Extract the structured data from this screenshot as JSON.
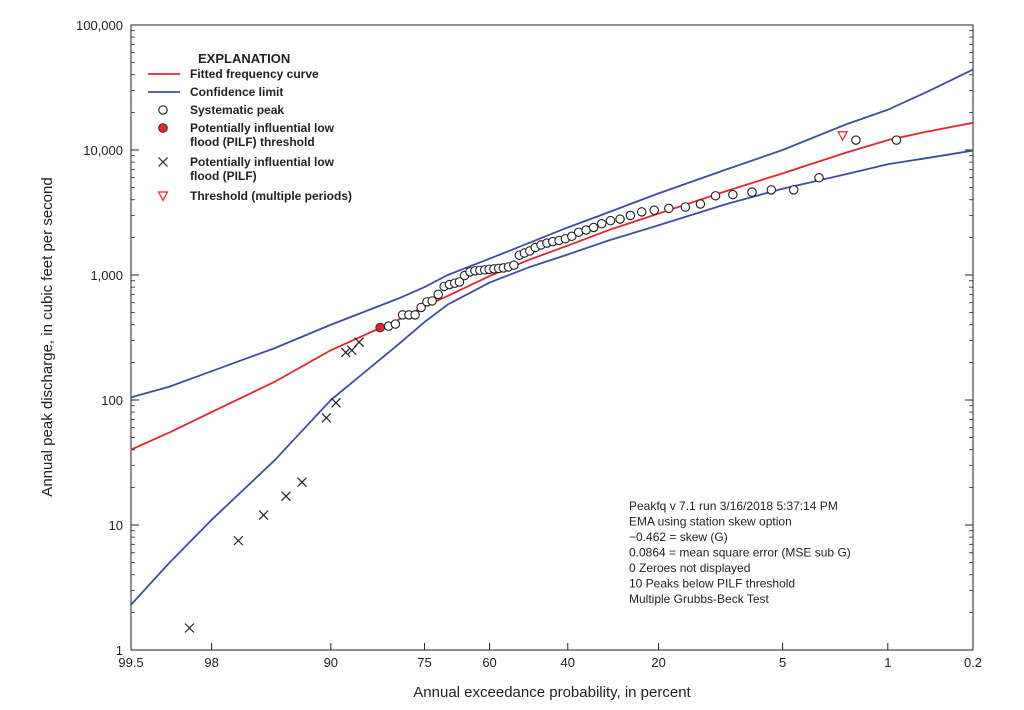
{
  "chart_data": {
    "type": "scatter",
    "title": "",
    "xlabel": "Annual exceedance probability, in percent",
    "ylabel": "Annual peak discharge, in cubic feet per second",
    "x_scale": "normal-probability",
    "y_scale": "log",
    "xlim": [
      99.5,
      0.2
    ],
    "ylim": [
      1,
      100000
    ],
    "x_ticks": [
      {
        "value": 99.5,
        "label": "99.5"
      },
      {
        "value": 98,
        "label": "98"
      },
      {
        "value": 90,
        "label": "90"
      },
      {
        "value": 75,
        "label": "75"
      },
      {
        "value": 60,
        "label": "60"
      },
      {
        "value": 40,
        "label": "40"
      },
      {
        "value": 20,
        "label": "20"
      },
      {
        "value": 5,
        "label": "5"
      },
      {
        "value": 1,
        "label": "1"
      },
      {
        "value": 0.2,
        "label": "0.2"
      }
    ],
    "y_ticks": [
      {
        "value": 1,
        "label": "1"
      },
      {
        "value": 10,
        "label": "10"
      },
      {
        "value": 100,
        "label": "100"
      },
      {
        "value": 1000,
        "label": "1,000"
      },
      {
        "value": 10000,
        "label": "10,000"
      },
      {
        "value": 100000,
        "label": "100,000"
      }
    ],
    "legend": {
      "title": "EXPLANATION",
      "placement": "top-left",
      "items": [
        {
          "kind": "line",
          "color": "#e2262b",
          "label_lines": [
            "Fitted frequency curve"
          ]
        },
        {
          "kind": "line",
          "color": "#3b4fa1",
          "label_lines": [
            "Confidence limit"
          ]
        },
        {
          "kind": "open-circle",
          "color": "#231f20",
          "label_lines": [
            "Systematic peak"
          ]
        },
        {
          "kind": "filled-circle",
          "color": "#e2262b",
          "label_lines": [
            "Potentially influential low",
            "flood (PILF) threshold"
          ]
        },
        {
          "kind": "cross",
          "color": "#231f20",
          "label_lines": [
            "Potentially influential low",
            "flood (PILF)"
          ]
        },
        {
          "kind": "triangle-down",
          "color": "#e2262b",
          "label_lines": [
            "Threshold (multiple periods)"
          ]
        }
      ]
    },
    "series": [
      {
        "name": "Fitted frequency curve",
        "kind": "line",
        "color": "#e2262b",
        "points": [
          [
            99.5,
            40
          ],
          [
            99,
            55
          ],
          [
            98,
            80
          ],
          [
            95,
            140
          ],
          [
            90,
            250
          ],
          [
            80,
            440
          ],
          [
            75,
            560
          ],
          [
            70,
            680
          ],
          [
            60,
            980
          ],
          [
            50,
            1320
          ],
          [
            40,
            1720
          ],
          [
            30,
            2300
          ],
          [
            20,
            3100
          ],
          [
            10,
            4700
          ],
          [
            5,
            6500
          ],
          [
            2,
            9500
          ],
          [
            1,
            12000
          ],
          [
            0.5,
            14000
          ],
          [
            0.2,
            16500
          ]
        ]
      },
      {
        "name": "Confidence limit (upper)",
        "kind": "line",
        "color": "#3b4fa1",
        "points": [
          [
            99.5,
            105
          ],
          [
            99,
            128
          ],
          [
            98,
            170
          ],
          [
            95,
            260
          ],
          [
            90,
            400
          ],
          [
            80,
            650
          ],
          [
            75,
            800
          ],
          [
            70,
            1000
          ],
          [
            60,
            1350
          ],
          [
            50,
            1800
          ],
          [
            40,
            2400
          ],
          [
            30,
            3200
          ],
          [
            20,
            4500
          ],
          [
            10,
            7000
          ],
          [
            5,
            10000
          ],
          [
            2,
            16000
          ],
          [
            1,
            21000
          ],
          [
            0.5,
            29000
          ],
          [
            0.2,
            44000
          ]
        ]
      },
      {
        "name": "Confidence limit (lower)",
        "kind": "line",
        "color": "#3b4fa1",
        "points": [
          [
            99.5,
            2.3
          ],
          [
            99,
            5
          ],
          [
            98,
            11
          ],
          [
            95,
            33
          ],
          [
            90,
            100
          ],
          [
            80,
            280
          ],
          [
            75,
            420
          ],
          [
            70,
            580
          ],
          [
            60,
            870
          ],
          [
            50,
            1150
          ],
          [
            40,
            1460
          ],
          [
            30,
            1900
          ],
          [
            20,
            2500
          ],
          [
            10,
            3700
          ],
          [
            5,
            4900
          ],
          [
            2,
            6400
          ],
          [
            1,
            7700
          ],
          [
            0.5,
            8600
          ],
          [
            0.2,
            9900
          ]
        ]
      },
      {
        "name": "Systematic peak",
        "kind": "open-circle",
        "color": "#231f20",
        "points": [
          [
            81.8,
            390
          ],
          [
            80.6,
            405
          ],
          [
            79.3,
            480
          ],
          [
            78.1,
            480
          ],
          [
            76.9,
            480
          ],
          [
            75.7,
            550
          ],
          [
            74.5,
            610
          ],
          [
            73.4,
            620
          ],
          [
            72.1,
            700
          ],
          [
            70.8,
            810
          ],
          [
            69.6,
            840
          ],
          [
            68.4,
            860
          ],
          [
            67.3,
            880
          ],
          [
            66.1,
            990
          ],
          [
            64.8,
            1060
          ],
          [
            63.6,
            1080
          ],
          [
            62.4,
            1090
          ],
          [
            61.2,
            1100
          ],
          [
            60.1,
            1110
          ],
          [
            58.9,
            1120
          ],
          [
            57.7,
            1130
          ],
          [
            56.5,
            1140
          ],
          [
            55.2,
            1160
          ],
          [
            53.8,
            1200
          ],
          [
            52.4,
            1440
          ],
          [
            51.1,
            1500
          ],
          [
            49.7,
            1560
          ],
          [
            48.3,
            1660
          ],
          [
            46.8,
            1740
          ],
          [
            45.3,
            1800
          ],
          [
            43.8,
            1850
          ],
          [
            42.2,
            1890
          ],
          [
            40.6,
            1950
          ],
          [
            39,
            2040
          ],
          [
            37.3,
            2200
          ],
          [
            35.5,
            2290
          ],
          [
            33.7,
            2400
          ],
          [
            31.8,
            2570
          ],
          [
            29.8,
            2720
          ],
          [
            27.7,
            2800
          ],
          [
            25.5,
            3000
          ],
          [
            23.2,
            3200
          ],
          [
            20.8,
            3300
          ],
          [
            18.2,
            3410
          ],
          [
            15.5,
            3500
          ],
          [
            13.3,
            3700
          ],
          [
            11.3,
            4300
          ],
          [
            9.3,
            4400
          ],
          [
            7.4,
            4600
          ],
          [
            5.8,
            4800
          ],
          [
            4.3,
            4800
          ],
          [
            3,
            6000
          ],
          [
            1.7,
            12000
          ],
          [
            0.86,
            12000
          ]
        ]
      },
      {
        "name": "Potentially influential low flood (PILF) threshold",
        "kind": "filled-circle",
        "color": "#e2262b",
        "points": [
          [
            83.2,
            380
          ]
        ]
      },
      {
        "name": "Potentially influential low flood (PILF)",
        "kind": "cross",
        "color": "#231f20",
        "points": [
          [
            98.6,
            1.5
          ],
          [
            97,
            7.5
          ],
          [
            95.7,
            12
          ],
          [
            94.2,
            17
          ],
          [
            92.9,
            22
          ],
          [
            90.5,
            72
          ],
          [
            89.4,
            95
          ],
          [
            88.2,
            240
          ],
          [
            87.4,
            250
          ],
          [
            86.4,
            290
          ]
        ]
      },
      {
        "name": "Threshold (multiple periods)",
        "kind": "triangle-down",
        "color": "#e2262b",
        "points": [
          [
            2.1,
            13000
          ]
        ]
      }
    ],
    "annotations": [
      "Peakfq v 7.1 run 3/16/2018 5:37:14 PM",
      "EMA using station skew option",
      "−0.462 = skew (G)",
      "0.0864 = mean square error (MSE sub G)",
      "0 Zeroes not displayed",
      "10 Peaks below PILF threshold",
      "Multiple Grubbs-Beck Test"
    ]
  }
}
